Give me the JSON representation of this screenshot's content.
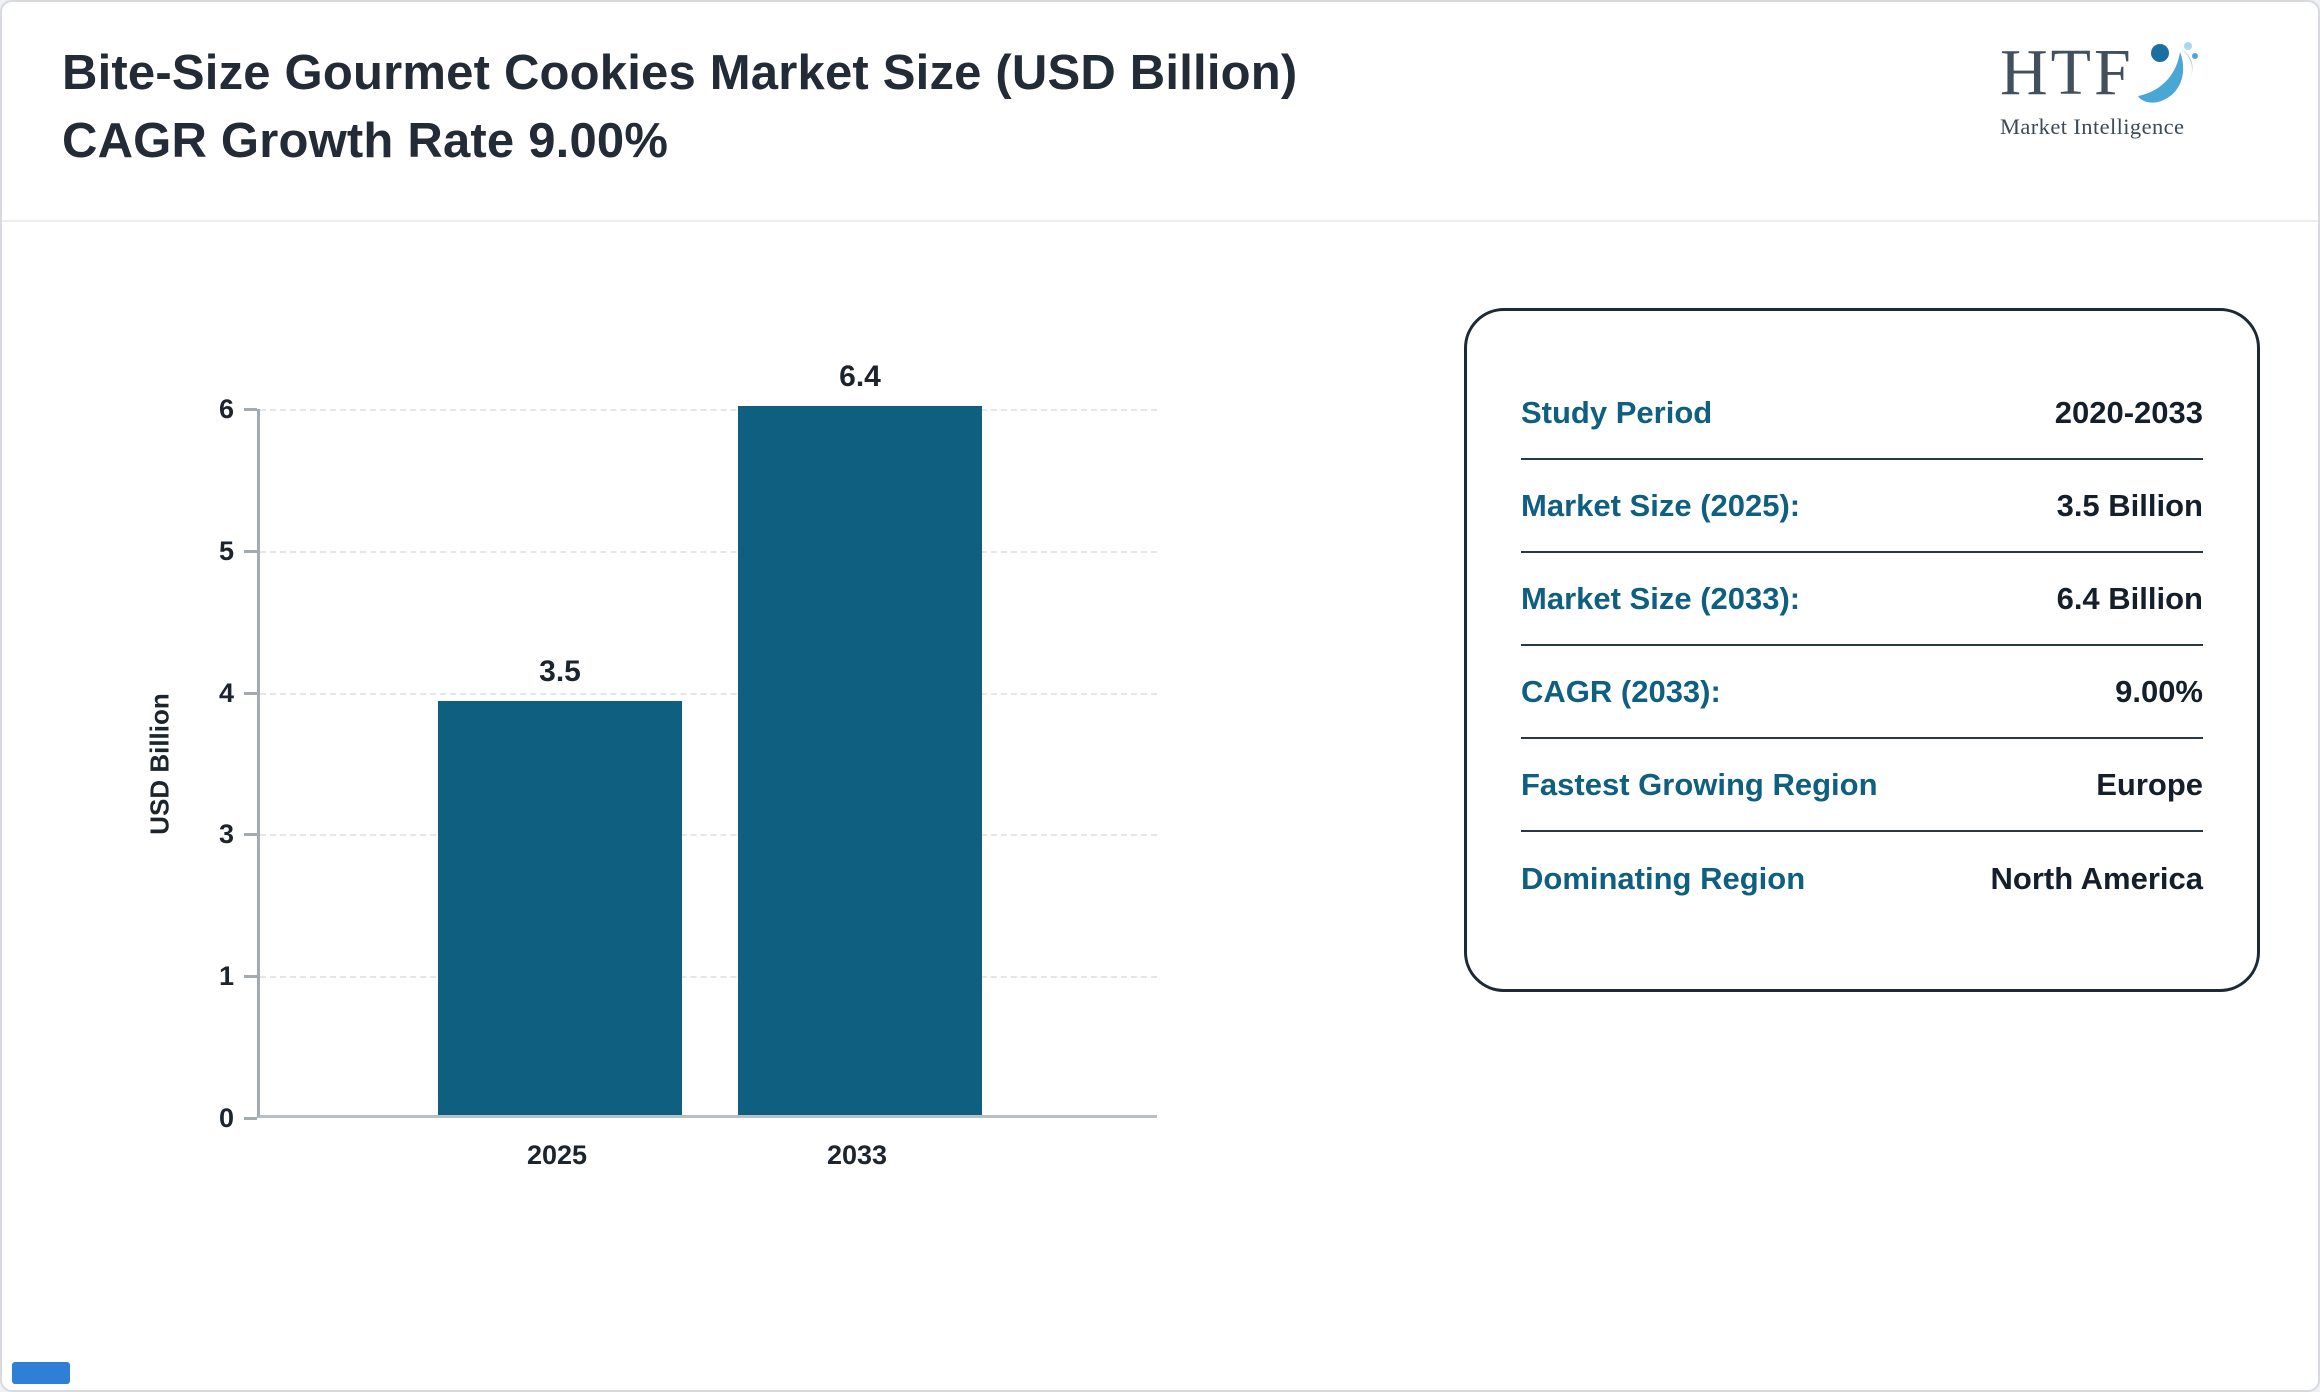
{
  "header": {
    "title": "Bite-Size Gourmet Cookies Market Size (USD Billion) CAGR Growth Rate 9.00%",
    "logo": {
      "brand": "HTF",
      "tagline": "Market Intelligence"
    }
  },
  "chart_data": {
    "type": "bar",
    "categories": [
      "2025",
      "2033"
    ],
    "values": [
      3.5,
      6.4
    ],
    "bar_labels": [
      "3.5",
      "6.4"
    ],
    "title": "",
    "xlabel": "",
    "ylabel": "USD Billion",
    "ylim": [
      0,
      6
    ],
    "yticks": [
      0,
      1,
      3,
      4,
      5,
      6
    ],
    "grid": true,
    "legend": false,
    "bar_color": "#0e5f80"
  },
  "info_card": {
    "rows": [
      {
        "label": "Study Period",
        "value": "2020-2033"
      },
      {
        "label": "Market Size (2025):",
        "value": "3.5 Billion"
      },
      {
        "label": "Market Size (2033):",
        "value": "6.4 Billion"
      },
      {
        "label": "CAGR (2033):",
        "value": "9.00%"
      },
      {
        "label": "Fastest Growing Region",
        "value": "Europe"
      },
      {
        "label": "Dominating Region",
        "value": "North America"
      }
    ]
  },
  "colors": {
    "bar": "#0e5f80",
    "card_label": "#0e5f80",
    "card_value": "#141f2b",
    "title_text": "#222b36",
    "logo_blue_dark": "#1b6fa0",
    "logo_blue_mid": "#4aa6d4",
    "logo_blue_light": "#a8d8ef"
  }
}
